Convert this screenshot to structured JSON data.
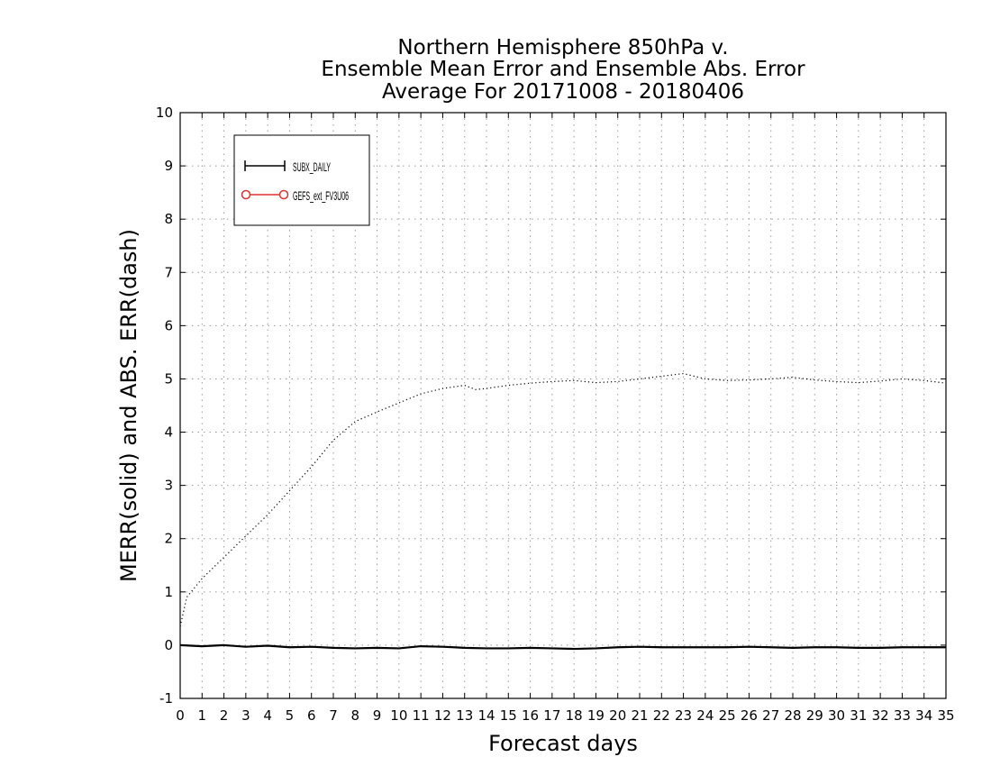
{
  "chart_data": {
    "type": "line",
    "title_lines": [
      "Northern Hemisphere 850hPa v.",
      "Ensemble Mean Error and Ensemble Abs. Error",
      "Average For 20171008 - 20180406"
    ],
    "xlabel": "Forecast days",
    "ylabel": "MERR(solid) and ABS. ERR(dash)",
    "xlim": [
      0,
      35
    ],
    "ylim": [
      -1,
      10
    ],
    "xticks": [
      "0",
      "1",
      "2",
      "3",
      "4",
      "5",
      "6",
      "7",
      "8",
      "9",
      "10",
      "11",
      "12",
      "13",
      "14",
      "15",
      "16",
      "17",
      "18",
      "19",
      "20",
      "21",
      "22",
      "23",
      "24",
      "25",
      "26",
      "27",
      "28",
      "29",
      "30",
      "31",
      "32",
      "33",
      "34",
      "35"
    ],
    "yticks": [
      "-1",
      "0",
      "1",
      "2",
      "3",
      "4",
      "5",
      "6",
      "7",
      "8",
      "9",
      "10"
    ],
    "grid": true,
    "legend_position": "top-left",
    "legend": [
      {
        "label": "SUBX_DAILY",
        "color": "#000000",
        "marker": "cross"
      },
      {
        "label": "GEFS_ext_FV3U06",
        "color": "#e03030",
        "marker": "circle"
      }
    ],
    "series": [
      {
        "name": "SUBX_DAILY",
        "line": "solid",
        "color": "#000000",
        "x": [
          0,
          1,
          2,
          3,
          4,
          5,
          6,
          7,
          8,
          9,
          10,
          11,
          12,
          13,
          14,
          15,
          16,
          17,
          18,
          19,
          20,
          21,
          22,
          23,
          24,
          25,
          26,
          27,
          28,
          29,
          30,
          31,
          32,
          33,
          34,
          35
        ],
        "values": [
          0.0,
          -0.02,
          0.0,
          -0.03,
          -0.01,
          -0.04,
          -0.03,
          -0.05,
          -0.06,
          -0.05,
          -0.06,
          -0.02,
          -0.03,
          -0.05,
          -0.06,
          -0.06,
          -0.05,
          -0.06,
          -0.07,
          -0.06,
          -0.04,
          -0.03,
          -0.04,
          -0.04,
          -0.04,
          -0.04,
          -0.03,
          -0.04,
          -0.05,
          -0.04,
          -0.04,
          -0.05,
          -0.05,
          -0.04,
          -0.04,
          -0.04
        ]
      },
      {
        "name": "SUBX_DAILY",
        "line": "dotted",
        "color": "#000000",
        "x": [
          0,
          0.3,
          1,
          2,
          3,
          4,
          5,
          6,
          7,
          8,
          9,
          10,
          11,
          12,
          13,
          13.5,
          14,
          15,
          16,
          17,
          18,
          19,
          20,
          21,
          22,
          23,
          24,
          25,
          26,
          27,
          28,
          29,
          30,
          31,
          32,
          33,
          34,
          35
        ],
        "values": [
          0.35,
          0.9,
          1.25,
          1.65,
          2.05,
          2.45,
          2.9,
          3.35,
          3.85,
          4.2,
          4.38,
          4.55,
          4.72,
          4.82,
          4.88,
          4.8,
          4.82,
          4.88,
          4.92,
          4.95,
          4.97,
          4.93,
          4.95,
          5.0,
          5.05,
          5.1,
          5.0,
          4.97,
          4.98,
          5.0,
          5.03,
          4.98,
          4.95,
          4.93,
          4.96,
          5.0,
          4.97,
          4.92
        ]
      }
    ]
  }
}
